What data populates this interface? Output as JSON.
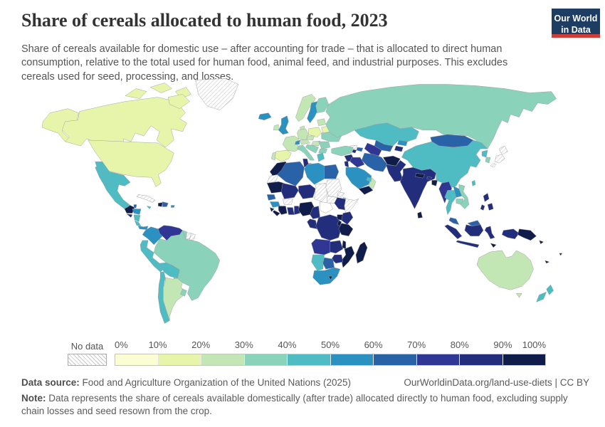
{
  "header": {
    "title": "Share of cereals allocated to human food, 2023",
    "subtitle": "Share of cereals available for domestic use – after accounting for trade – that is allocated to direct human consumption, relative to the total used for human food, animal feed, and industrial purposes. This excludes cereals used for seed, processing, and losses.",
    "logo_line1": "Our World",
    "logo_line2": "in Data",
    "logo_bg": "#1d3d63",
    "logo_accent": "#cf3e36"
  },
  "legend": {
    "no_data_label": "No data",
    "ticks": [
      "0%",
      "10%",
      "20%",
      "30%",
      "40%",
      "50%",
      "60%",
      "70%",
      "80%",
      "90%",
      "100%"
    ],
    "colors": [
      "#fbfdd2",
      "#e7f5ab",
      "#c3e7b4",
      "#8bd2ba",
      "#4fbbc3",
      "#2b91c0",
      "#2a62a8",
      "#2f3693",
      "#222d7b",
      "#101c49"
    ]
  },
  "footer": {
    "data_source_label": "Data source:",
    "data_source_text": " Food and Agriculture Organization of the United Nations (2025)",
    "link_text": "OurWorldinData.org/land-use-diets | CC BY",
    "note_label": "Note:",
    "note_text": " Data represents the share of cereals available domestically (after trade) allocated directly to human food, excluding supply chain losses and seed resown from the crop."
  },
  "map": {
    "fills": {
      "usa": 1,
      "canada": 1,
      "greenland": "n",
      "mexico": 4,
      "guatemala": 9,
      "belize": 6,
      "honduras": 5,
      "el-salvador": 8,
      "nicaragua": 4,
      "costa-rica": 4,
      "panama": 5,
      "cuba": "n",
      "jamaica": 4,
      "haiti": 9,
      "dominican-republic": 6,
      "puerto-rico": 5,
      "colombia": 5,
      "venezuela": 7,
      "guyana": 3,
      "suriname": "n",
      "french-guiana": "n",
      "ecuador": 4,
      "peru": 4,
      "brazil": 3,
      "bolivia": 4,
      "paraguay": 3,
      "chile": 4,
      "argentina": 2,
      "uruguay": 3,
      "iceland": 5,
      "norway": 2,
      "sweden": 5,
      "finland": 3,
      "denmark": 2,
      "uk": 5,
      "ireland": 2,
      "france": 2,
      "spain": 1,
      "portugal": 2,
      "germany": 2,
      "poland": 1,
      "austria": 2,
      "czechia": 2,
      "hungary": 2,
      "switzerland": 5,
      "italy": 3,
      "balkans": 3,
      "greece": 4,
      "bulgaria": 3,
      "romania": 3,
      "ukraine": 3,
      "belarus": 1,
      "baltics": 2,
      "russia": 3,
      "kazakhstan": 4,
      "uzbekistan": 6,
      "turkmenistan": 7,
      "kyrgyzstan": 5,
      "tajikistan": 8,
      "georgia": "n",
      "azerbaijan": 6,
      "armenia": 8,
      "turkey": 3,
      "syria": 8,
      "iraq": 7,
      "iran": 6,
      "jordan": 8,
      "saudi-arabia": 5,
      "yemen": 9,
      "oman": 2,
      "uae": 4,
      "morocco": 9,
      "western-sahara": "n",
      "algeria": 6,
      "tunisia": 8,
      "libya": 5,
      "egypt": 6,
      "mauritania": 9,
      "mali": 8,
      "niger": 8,
      "chad": "n",
      "sudan": "n",
      "south-sudan": "n",
      "eritrea": "n",
      "djibouti": 4,
      "ethiopia": 8,
      "somalia": "n",
      "senegal": 6,
      "guinea": 5,
      "sierra-leone": 9,
      "liberia": 9,
      "ivory-coast": 9,
      "ghana": 8,
      "togo": 8,
      "burkina-faso": "n",
      "nigeria": 9,
      "cameroon": 8,
      "central-african-republic": "w",
      "congo": 8,
      "drc": 8,
      "uganda": 9,
      "kenya": 8,
      "tanzania": 9,
      "rwanda": 9,
      "angola": 7,
      "zambia": 8,
      "malawi": 9,
      "mozambique": 9,
      "zimbabwe": 8,
      "namibia": 4,
      "botswana": 6,
      "south-africa": 5,
      "lesotho": 9,
      "madagascar": 9,
      "afghanistan": 9,
      "pakistan": 8,
      "india": 8,
      "nepal": 9,
      "bhutan": 8,
      "bangladesh": 9,
      "sri-lanka": 9,
      "china": 4,
      "mongolia": 6,
      "north-korea": 4,
      "south-korea": 3,
      "japan": "n",
      "taiwan": 4,
      "myanmar": 7,
      "thailand": 4,
      "laos": 5,
      "cambodia": 3,
      "vietnam": 3,
      "malaysia": 6,
      "indonesia": 8,
      "timor": 9,
      "papua-new-guinea": 9,
      "philippines": 8,
      "solomon-islands": 9,
      "fiji": 9,
      "new-caledonia": 9,
      "australia": 2,
      "new-zealand": 4
    }
  },
  "chart_data": {
    "type": "choropleth_map",
    "title": "Share of cereals allocated to human food, 2023",
    "unit": "% of domestic cereal supply used directly as human food",
    "legend_ticks": [
      "0%",
      "10%",
      "20%",
      "30%",
      "40%",
      "50%",
      "60%",
      "70%",
      "80%",
      "90%",
      "100%"
    ],
    "legend_colors": [
      "#fbfdd2",
      "#e7f5ab",
      "#c3e7b4",
      "#8bd2ba",
      "#4fbbc3",
      "#2b91c0",
      "#2a62a8",
      "#2f3693",
      "#222d7b",
      "#101c49"
    ],
    "no_data_style": "gray diagonal hatching",
    "values_by_bucket": {
      "0-10%": [],
      "10-20%": [
        "United States",
        "Canada",
        "Spain",
        "Poland",
        "Belarus"
      ],
      "20-30%": [
        "Argentina",
        "Australia",
        "France",
        "Germany",
        "Norway",
        "Ireland",
        "Denmark",
        "Austria",
        "Portugal",
        "Oman",
        "Baltic states"
      ],
      "30-40%": [
        "Brazil",
        "Russia",
        "Ukraine",
        "Italy",
        "Romania",
        "Bulgaria",
        "Turkey",
        "Finland",
        "Vietnam",
        "Cambodia",
        "South Korea",
        "Paraguay",
        "Uruguay",
        "Guyana"
      ],
      "40-50%": [
        "Mexico",
        "China",
        "Kazakhstan",
        "Thailand",
        "Peru",
        "Ecuador",
        "Bolivia",
        "Chile",
        "Greece",
        "Namibia",
        "New Zealand",
        "North Korea",
        "Taiwan",
        "Jamaica",
        "Nicaragua",
        "Costa Rica"
      ],
      "50-60%": [
        "Colombia",
        "United Kingdom",
        "Sweden",
        "Switzerland",
        "Iceland",
        "Saudi Arabia",
        "Libya",
        "Guinea",
        "South Africa",
        "Laos",
        "Kyrgyzstan",
        "Honduras",
        "Panama"
      ],
      "60-70%": [
        "Algeria",
        "Egypt",
        "Mongolia",
        "Uzbekistan",
        "Malaysia",
        "Botswana",
        "Senegal",
        "Azerbaijan",
        "Dominican Republic",
        "Iran"
      ],
      "70-80%": [
        "Venezuela",
        "Angola",
        "Myanmar",
        "Turkmenistan",
        "Iraq"
      ],
      "80-90%": [
        "India",
        "Pakistan",
        "Indonesia",
        "Philippines",
        "Ethiopia",
        "Mali",
        "Niger",
        "Ghana",
        "Cameroon",
        "DR Congo",
        "Kenya",
        "Zambia",
        "Zimbabwe",
        "Syria",
        "Tunisia",
        "Tajikistan",
        "El Salvador"
      ],
      "90-100%": [
        "Morocco",
        "Mauritania",
        "Guatemala",
        "Haiti",
        "Yemen",
        "Afghanistan",
        "Nepal",
        "Bangladesh",
        "Sri Lanka",
        "Madagascar",
        "Mozambique",
        "Nigeria",
        "Sierra Leone",
        "Liberia",
        "Ivory Coast",
        "Uganda",
        "Tanzania",
        "Malawi",
        "Lesotho",
        "Papua New Guinea"
      ],
      "No data": [
        "Greenland",
        "Cuba",
        "Suriname",
        "French Guiana",
        "Western Sahara",
        "Chad",
        "Sudan",
        "South Sudan",
        "Eritrea",
        "Somalia",
        "Burkina Faso",
        "Central African Republic",
        "Georgia",
        "Japan"
      ]
    }
  }
}
